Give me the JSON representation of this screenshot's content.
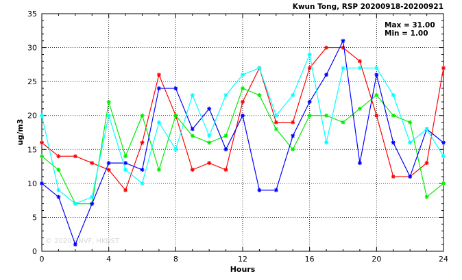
{
  "chart_data": {
    "type": "line",
    "title": "Kwun Tong, RSP 20200918-20200921",
    "xlabel": "Hours",
    "ylabel": "ug/m3",
    "xlim": [
      0,
      24
    ],
    "ylim": [
      0,
      35
    ],
    "x_ticks": [
      0,
      4,
      8,
      12,
      16,
      20,
      24
    ],
    "y_ticks": [
      0,
      5,
      10,
      15,
      20,
      25,
      30,
      35
    ],
    "grid": true,
    "annotations": {
      "max": "Max = 31.00",
      "min": "Min =  1.00"
    },
    "watermark": "© 2020 ENVF, HKUST",
    "x": [
      0,
      1,
      2,
      3,
      4,
      5,
      6,
      7,
      8,
      9,
      10,
      11,
      12,
      13,
      14,
      15,
      16,
      17,
      18,
      19,
      20,
      21,
      22,
      23,
      24
    ],
    "series": [
      {
        "color": "#ff0000",
        "values": [
          16,
          14,
          14,
          13,
          12,
          9,
          16,
          26,
          20,
          12,
          13,
          12,
          22,
          27,
          19,
          19,
          27,
          30,
          30,
          28,
          20,
          11,
          11,
          13,
          27
        ]
      },
      {
        "color": "#00ee00",
        "values": [
          14,
          12,
          7,
          7,
          22,
          14,
          20,
          12,
          20,
          17,
          16,
          17,
          24,
          23,
          18,
          15,
          20,
          20,
          19,
          21,
          23,
          20,
          19,
          8,
          10
        ]
      },
      {
        "color": "#0000ff",
        "values": [
          10,
          8,
          1,
          7,
          13,
          13,
          12,
          24,
          24,
          18,
          21,
          15,
          20,
          9,
          9,
          17,
          22,
          26,
          31,
          13,
          26,
          16,
          11,
          18,
          16
        ]
      },
      {
        "color": "#00ffff",
        "values": [
          20,
          9,
          7,
          8,
          20,
          12,
          10,
          19,
          15,
          23,
          17,
          23,
          26,
          27,
          20,
          23,
          29,
          16,
          27,
          27,
          27,
          23,
          16,
          18,
          14
        ]
      }
    ]
  }
}
